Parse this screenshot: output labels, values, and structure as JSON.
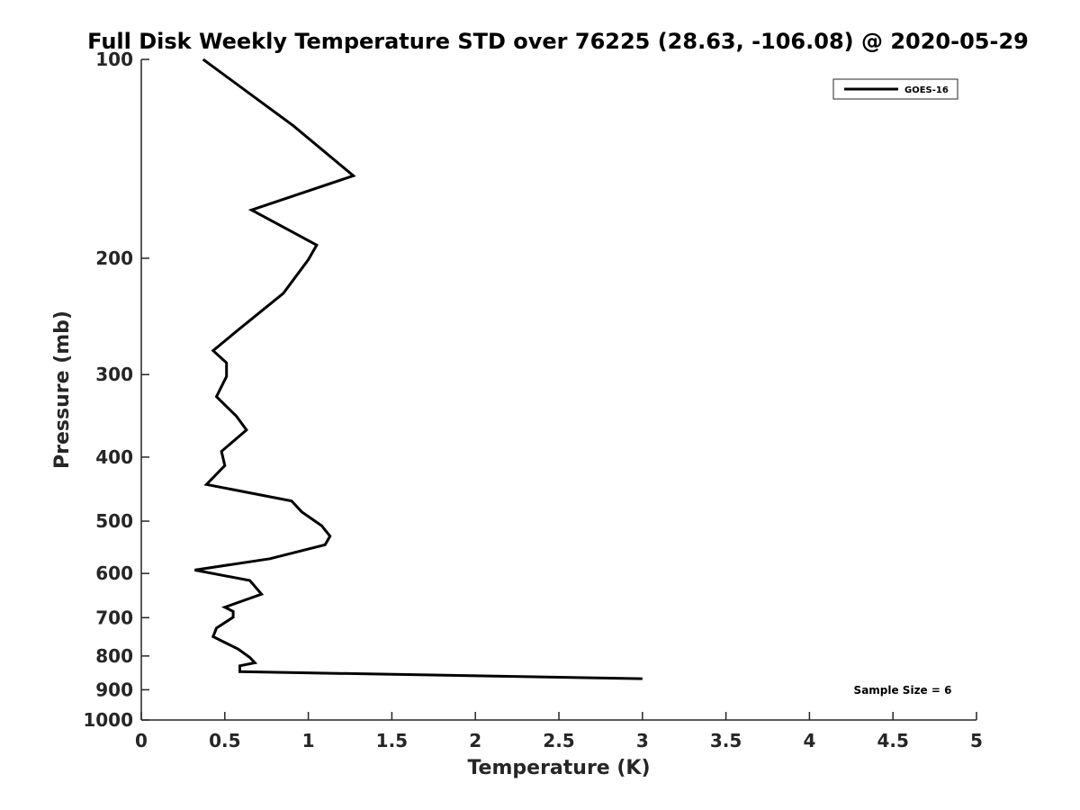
{
  "chart_data": {
    "type": "line",
    "title": "Full Disk Weekly Temperature STD over 76225 (28.63, -106.08) @ 2020-05-29",
    "xlabel": "Temperature (K)",
    "ylabel": "Pressure (mb)",
    "xlim": [
      0,
      5
    ],
    "ylim": [
      100,
      1000
    ],
    "yscale": "log",
    "yreversed": true,
    "xticks": [
      0,
      0.5,
      1,
      1.5,
      2,
      2.5,
      3,
      3.5,
      4,
      4.5,
      5
    ],
    "xtick_labels": [
      "0",
      "0.5",
      "1",
      "1.5",
      "2",
      "2.5",
      "3",
      "3.5",
      "4",
      "4.5",
      "5"
    ],
    "yticks": [
      100,
      200,
      300,
      400,
      500,
      600,
      700,
      800,
      900,
      1000
    ],
    "ytick_labels": [
      "100",
      "200",
      "300",
      "400",
      "500",
      "600",
      "700",
      "800",
      "900",
      "1000"
    ],
    "grid": false,
    "legend_position": "top-right",
    "annotation": "Sample Size = 6",
    "series": [
      {
        "name": "GOES-16",
        "color": "#000000",
        "x": [
          0.37,
          0.91,
          1.27,
          0.66,
          1.05,
          1.0,
          0.85,
          0.57,
          0.43,
          0.51,
          0.51,
          0.45,
          0.57,
          0.63,
          0.48,
          0.5,
          0.39,
          0.9,
          0.96,
          1.08,
          1.13,
          1.1,
          0.77,
          0.32,
          0.65,
          0.72,
          0.5,
          0.55,
          0.55,
          0.45,
          0.43,
          0.58,
          0.65,
          0.68,
          0.59,
          0.59,
          3.0
        ],
        "y": [
          100,
          126,
          150,
          169,
          191,
          201,
          226,
          258,
          276,
          288,
          302,
          324,
          347,
          364,
          392,
          412,
          440,
          466,
          484,
          508,
          527,
          543,
          570,
          593,
          615,
          645,
          675,
          685,
          699,
          726,
          748,
          781,
          804,
          819,
          828,
          845,
          866
        ]
      }
    ]
  }
}
